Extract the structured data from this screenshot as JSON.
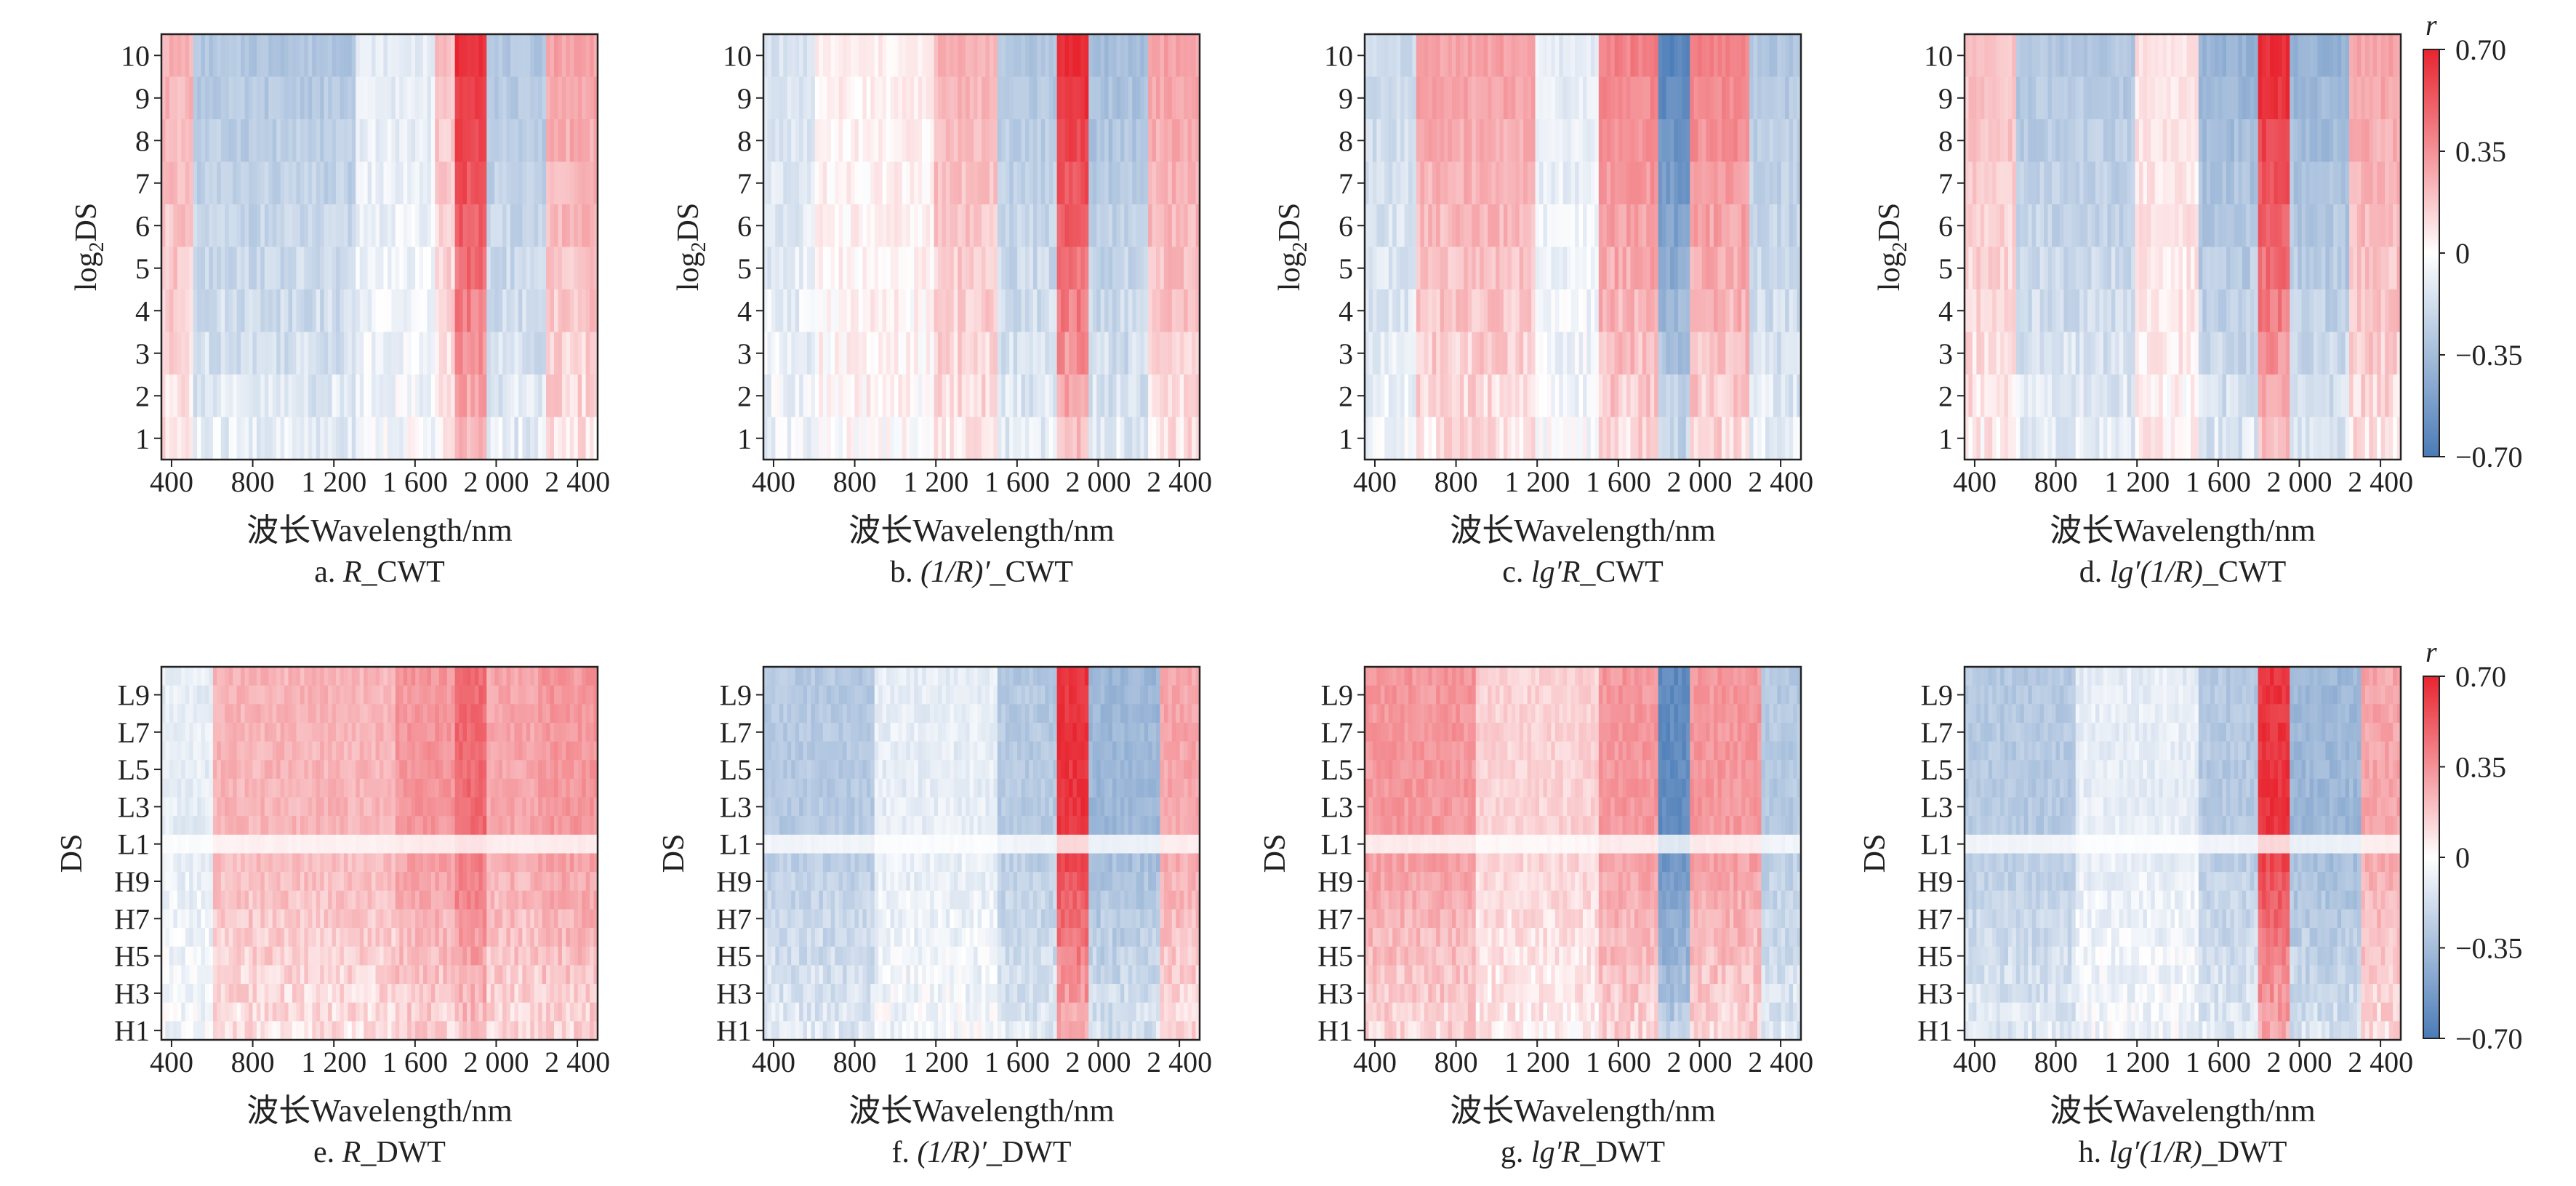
{
  "chart_data": [
    {
      "id": "a",
      "type": "heatmap",
      "title": "a. R_CWT",
      "caption_letter": "a.",
      "caption_symbol": "R",
      "caption_suffix": "_CWT",
      "xlabel": "波长Wavelength/nm",
      "ylabel": "log2DS",
      "x_ticks": [
        "400",
        "800",
        "1 200",
        "1 600",
        "2 000",
        "2 400"
      ],
      "x_tick_values": [
        400,
        800,
        1200,
        1600,
        2000,
        2400
      ],
      "xlim": [
        350,
        2500
      ],
      "y_ticks": [
        "1",
        "2",
        "3",
        "4",
        "5",
        "6",
        "7",
        "8",
        "9",
        "10"
      ],
      "bands": [
        {
          "from": 350,
          "to": 500,
          "r": 0.25
        },
        {
          "from": 500,
          "to": 1300,
          "r": -0.3
        },
        {
          "from": 1300,
          "to": 1700,
          "r": -0.1
        },
        {
          "from": 1700,
          "to": 1800,
          "r": 0.2
        },
        {
          "from": 1800,
          "to": 1950,
          "r": 0.68
        },
        {
          "from": 1950,
          "to": 2250,
          "r": -0.3
        },
        {
          "from": 2250,
          "to": 2500,
          "r": 0.3
        }
      ]
    },
    {
      "id": "b",
      "type": "heatmap",
      "title": "b. (1/R)′_CWT",
      "caption_letter": "b.",
      "caption_symbol": "(1/R)′",
      "caption_suffix": "_CWT",
      "xlabel": "波长Wavelength/nm",
      "ylabel": "log2DS",
      "x_ticks": [
        "400",
        "800",
        "1 200",
        "1 600",
        "2 000",
        "2 400"
      ],
      "x_tick_values": [
        400,
        800,
        1200,
        1600,
        2000,
        2400
      ],
      "xlim": [
        350,
        2500
      ],
      "y_ticks": [
        "1",
        "2",
        "3",
        "4",
        "5",
        "6",
        "7",
        "8",
        "9",
        "10"
      ],
      "bands": [
        {
          "from": 350,
          "to": 600,
          "r": -0.15
        },
        {
          "from": 600,
          "to": 1200,
          "r": 0.05
        },
        {
          "from": 1200,
          "to": 1500,
          "r": 0.25
        },
        {
          "from": 1500,
          "to": 1800,
          "r": -0.3
        },
        {
          "from": 1800,
          "to": 1950,
          "r": 0.68
        },
        {
          "from": 1950,
          "to": 2250,
          "r": -0.35
        },
        {
          "from": 2250,
          "to": 2500,
          "r": 0.3
        }
      ]
    },
    {
      "id": "c",
      "type": "heatmap",
      "title": "c. lg′R_CWT",
      "caption_letter": "c.",
      "caption_symbol": "lg′R",
      "caption_suffix": "_CWT",
      "xlabel": "波长Wavelength/nm",
      "ylabel": "log2DS",
      "x_ticks": [
        "400",
        "800",
        "1 200",
        "1 600",
        "2 000",
        "2 400"
      ],
      "x_tick_values": [
        400,
        800,
        1200,
        1600,
        2000,
        2400
      ],
      "xlim": [
        350,
        2500
      ],
      "y_ticks": [
        "1",
        "2",
        "3",
        "4",
        "5",
        "6",
        "7",
        "8",
        "9",
        "10"
      ],
      "bands": [
        {
          "from": 350,
          "to": 600,
          "r": -0.2
        },
        {
          "from": 600,
          "to": 1200,
          "r": 0.3
        },
        {
          "from": 1200,
          "to": 1500,
          "r": -0.1
        },
        {
          "from": 1500,
          "to": 1800,
          "r": 0.4
        },
        {
          "from": 1800,
          "to": 1950,
          "r": -0.65
        },
        {
          "from": 1950,
          "to": 2250,
          "r": 0.4
        },
        {
          "from": 2250,
          "to": 2500,
          "r": -0.3
        }
      ]
    },
    {
      "id": "d",
      "type": "heatmap",
      "title": "d. lg′(1/R)_CWT",
      "caption_letter": "d.",
      "caption_symbol": "lg′(1/R)",
      "caption_suffix": "_CWT",
      "xlabel": "波长Wavelength/nm",
      "ylabel": "log2DS",
      "x_ticks": [
        "400",
        "800",
        "1 200",
        "1 600",
        "2 000",
        "2 400"
      ],
      "x_tick_values": [
        400,
        800,
        1200,
        1600,
        2000,
        2400
      ],
      "xlim": [
        350,
        2500
      ],
      "y_ticks": [
        "1",
        "2",
        "3",
        "4",
        "5",
        "6",
        "7",
        "8",
        "9",
        "10"
      ],
      "bands": [
        {
          "from": 350,
          "to": 600,
          "r": 0.2
        },
        {
          "from": 600,
          "to": 1200,
          "r": -0.3
        },
        {
          "from": 1200,
          "to": 1500,
          "r": 0.1
        },
        {
          "from": 1500,
          "to": 1800,
          "r": -0.4
        },
        {
          "from": 1800,
          "to": 1950,
          "r": 0.68
        },
        {
          "from": 1950,
          "to": 2250,
          "r": -0.4
        },
        {
          "from": 2250,
          "to": 2500,
          "r": 0.3
        }
      ]
    },
    {
      "id": "e",
      "type": "heatmap",
      "title": "e. R_DWT",
      "caption_letter": "e.",
      "caption_symbol": "R",
      "caption_suffix": "_DWT",
      "xlabel": "波长Wavelength/nm",
      "ylabel": "DS",
      "x_ticks": [
        "400",
        "800",
        "1 200",
        "1 600",
        "2 000",
        "2 400"
      ],
      "x_tick_values": [
        400,
        800,
        1200,
        1600,
        2000,
        2400
      ],
      "xlim": [
        350,
        2500
      ],
      "y_ticks": [
        "H1",
        "H3",
        "H5",
        "H7",
        "H9",
        "L1",
        "L3",
        "L5",
        "L7",
        "L9"
      ],
      "bands": [
        {
          "from": 350,
          "to": 600,
          "r": -0.1
        },
        {
          "from": 600,
          "to": 1500,
          "r": 0.25
        },
        {
          "from": 1500,
          "to": 1800,
          "r": 0.35
        },
        {
          "from": 1800,
          "to": 1950,
          "r": 0.5
        },
        {
          "from": 1950,
          "to": 2200,
          "r": 0.3
        },
        {
          "from": 2200,
          "to": 2500,
          "r": 0.35
        }
      ]
    },
    {
      "id": "f",
      "type": "heatmap",
      "title": "f. (1/R)′_DWT",
      "caption_letter": "f.",
      "caption_symbol": "(1/R)′",
      "caption_suffix": "_DWT",
      "xlabel": "波长Wavelength/nm",
      "ylabel": "DS",
      "x_ticks": [
        "400",
        "800",
        "1 200",
        "1 600",
        "2 000",
        "2 400"
      ],
      "x_tick_values": [
        400,
        800,
        1200,
        1600,
        2000,
        2400
      ],
      "xlim": [
        350,
        2500
      ],
      "y_ticks": [
        "H1",
        "H3",
        "H5",
        "H7",
        "H9",
        "L1",
        "L3",
        "L5",
        "L7",
        "L9"
      ],
      "bands": [
        {
          "from": 350,
          "to": 900,
          "r": -0.3
        },
        {
          "from": 900,
          "to": 1500,
          "r": -0.1
        },
        {
          "from": 1500,
          "to": 1800,
          "r": -0.3
        },
        {
          "from": 1800,
          "to": 1950,
          "r": 0.68
        },
        {
          "from": 1950,
          "to": 2300,
          "r": -0.4
        },
        {
          "from": 2300,
          "to": 2500,
          "r": 0.3
        }
      ]
    },
    {
      "id": "g",
      "type": "heatmap",
      "title": "g. lg′R_DWT",
      "caption_letter": "g.",
      "caption_symbol": "lg′R",
      "caption_suffix": "_DWT",
      "xlabel": "波长Wavelength/nm",
      "ylabel": "DS",
      "x_ticks": [
        "400",
        "800",
        "1 200",
        "1 600",
        "2 000",
        "2 400"
      ],
      "x_tick_values": [
        400,
        800,
        1200,
        1600,
        2000,
        2400
      ],
      "xlim": [
        350,
        2500
      ],
      "y_ticks": [
        "H1",
        "H3",
        "H5",
        "H7",
        "H9",
        "L1",
        "L3",
        "L5",
        "L7",
        "L9"
      ],
      "bands": [
        {
          "from": 350,
          "to": 900,
          "r": 0.35
        },
        {
          "from": 900,
          "to": 1500,
          "r": 0.15
        },
        {
          "from": 1500,
          "to": 1800,
          "r": 0.35
        },
        {
          "from": 1800,
          "to": 1950,
          "r": -0.65
        },
        {
          "from": 1950,
          "to": 2300,
          "r": 0.35
        },
        {
          "from": 2300,
          "to": 2500,
          "r": -0.3
        }
      ]
    },
    {
      "id": "h",
      "type": "heatmap",
      "title": "h. lg′(1/R)_DWT",
      "caption_letter": "h.",
      "caption_symbol": "lg′(1/R)",
      "caption_suffix": "_DWT",
      "xlabel": "波长Wavelength/nm",
      "ylabel": "DS",
      "x_ticks": [
        "400",
        "800",
        "1 200",
        "1 600",
        "2 000",
        "2 400"
      ],
      "x_tick_values": [
        400,
        800,
        1200,
        1600,
        2000,
        2400
      ],
      "xlim": [
        350,
        2500
      ],
      "y_ticks": [
        "H1",
        "H3",
        "H5",
        "H7",
        "H9",
        "L1",
        "L3",
        "L5",
        "L7",
        "L9"
      ],
      "bands": [
        {
          "from": 350,
          "to": 900,
          "r": -0.3
        },
        {
          "from": 900,
          "to": 1500,
          "r": -0.1
        },
        {
          "from": 1500,
          "to": 1800,
          "r": -0.3
        },
        {
          "from": 1800,
          "to": 1950,
          "r": 0.68
        },
        {
          "from": 1950,
          "to": 2300,
          "r": -0.4
        },
        {
          "from": 2300,
          "to": 2500,
          "r": 0.3
        }
      ]
    }
  ],
  "colorbars": [
    {
      "id": "top",
      "label": "r",
      "ticks": [
        "0.70",
        "0.35",
        "0",
        "−0.35",
        "−0.70"
      ],
      "tick_values": [
        0.7,
        0.35,
        0,
        -0.35,
        -0.7
      ]
    },
    {
      "id": "bottom",
      "label": "r",
      "ticks": [
        "0.70",
        "0.35",
        "0",
        "−0.35",
        "−0.70"
      ],
      "tick_values": [
        0.7,
        0.35,
        0,
        -0.35,
        -0.7
      ]
    }
  ],
  "colors": {
    "negative": "#4a7bb7",
    "neutral": "#ffffff",
    "positive": "#e8242f"
  }
}
